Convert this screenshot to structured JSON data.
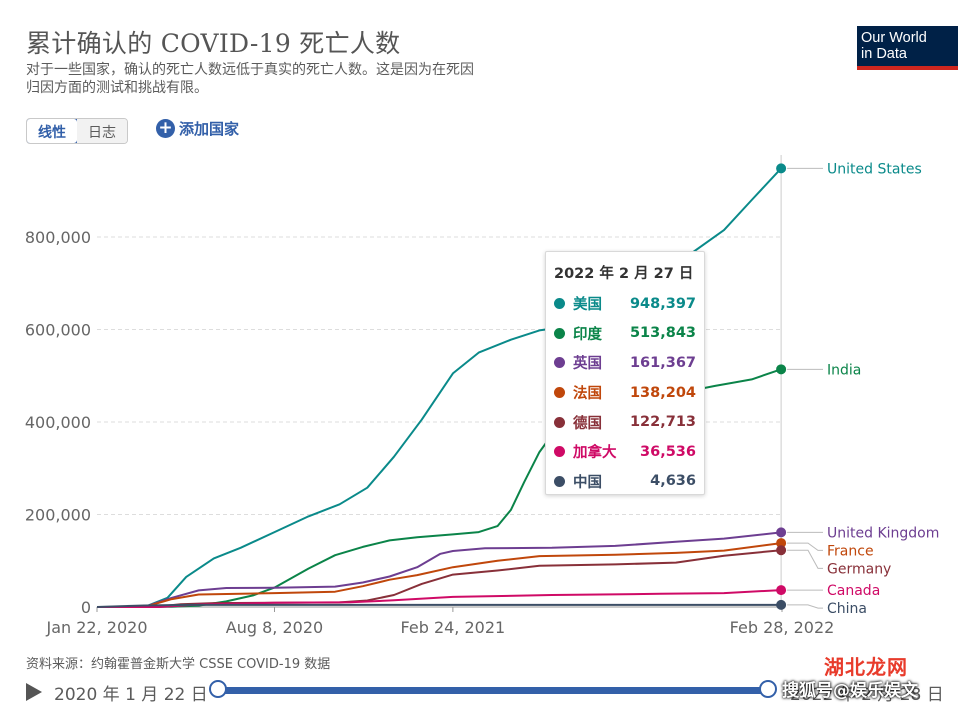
{
  "header": {
    "title": "累计确认的 COVID-19 死亡人数",
    "subtitle": "对于一些国家，确认的死亡人数远低于真实的死亡人数。这是因为在死因归因方面的测试和挑战有限。",
    "logo_line1": "Our World",
    "logo_line2": "in Data"
  },
  "controls": {
    "scale_linear": "线性",
    "scale_log": "日志",
    "add_country": "添加国家"
  },
  "tooltip": {
    "date": "2022 年 2 月 27 日",
    "rows": [
      {
        "name": "美国",
        "value": "948,397",
        "color": "#0a8a8a"
      },
      {
        "name": "印度",
        "value": "513,843",
        "color": "#0b8449"
      },
      {
        "name": "英国",
        "value": "161,367",
        "color": "#6d3e91"
      },
      {
        "name": "法国",
        "value": "138,204",
        "color": "#c0470b"
      },
      {
        "name": "德国",
        "value": "122,713",
        "color": "#883039"
      },
      {
        "name": "加拿大",
        "value": "36,536",
        "color": "#cf0a66"
      },
      {
        "name": "中国",
        "value": "4,636",
        "color": "#3c4e66"
      }
    ]
  },
  "footer": {
    "source": "资料来源：约翰霍普金斯大学 CSSE COVID-19 数据",
    "timeline_start": "2020 年 1 月 22 日",
    "timeline_end": "2022 年 2 月 28 日"
  },
  "watermark": {
    "line1": "湖北龙网",
    "line2": "搜狐号@娱乐娱文"
  },
  "chart_data": {
    "type": "line",
    "xlabel": "",
    "ylabel": "",
    "ylim": [
      0,
      1000000
    ],
    "x_range": [
      "2020-01-22",
      "2022-02-28"
    ],
    "y_ticks": [
      0,
      200000,
      400000,
      600000,
      800000
    ],
    "y_tick_labels": [
      "0",
      "200,000",
      "400,000",
      "600,000",
      "800,000"
    ],
    "x_ticks": [
      "2020-01-22",
      "2020-08-08",
      "2021-02-24",
      "2022-02-28"
    ],
    "x_tick_labels": [
      "Jan 22, 2020",
      "Aug 8, 2020",
      "Feb 24, 2021",
      "Feb 28, 2022"
    ],
    "grid": "horizontal",
    "legend": "right, labels at line ends",
    "series": [
      {
        "name": "United States",
        "color": "#0a8a8a",
        "points": [
          [
            "2020-01-22",
            0
          ],
          [
            "2020-03-15",
            100
          ],
          [
            "2020-04-10",
            20000
          ],
          [
            "2020-05-01",
            65000
          ],
          [
            "2020-06-01",
            105000
          ],
          [
            "2020-07-01",
            128000
          ],
          [
            "2020-08-08",
            162000
          ],
          [
            "2020-09-15",
            196000
          ],
          [
            "2020-10-20",
            222000
          ],
          [
            "2020-11-20",
            258000
          ],
          [
            "2020-12-20",
            325000
          ],
          [
            "2021-01-20",
            405000
          ],
          [
            "2021-02-24",
            505000
          ],
          [
            "2021-03-25",
            550000
          ],
          [
            "2021-04-30",
            578000
          ],
          [
            "2021-06-01",
            598000
          ],
          [
            "2021-07-15",
            610000
          ],
          [
            "2021-08-25",
            638000
          ],
          [
            "2021-10-01",
            700000
          ],
          [
            "2021-11-15",
            760000
          ],
          [
            "2021-12-25",
            815000
          ],
          [
            "2022-01-25",
            880000
          ],
          [
            "2022-02-27",
            948397
          ]
        ]
      },
      {
        "name": "India",
        "color": "#0b8449",
        "points": [
          [
            "2020-01-22",
            0
          ],
          [
            "2020-04-15",
            400
          ],
          [
            "2020-05-15",
            3000
          ],
          [
            "2020-06-15",
            12000
          ],
          [
            "2020-07-15",
            25000
          ],
          [
            "2020-08-08",
            42000
          ],
          [
            "2020-09-15",
            83000
          ],
          [
            "2020-10-15",
            112000
          ],
          [
            "2020-11-15",
            130000
          ],
          [
            "2020-12-15",
            144000
          ],
          [
            "2021-01-15",
            151000
          ],
          [
            "2021-02-24",
            157000
          ],
          [
            "2021-03-25",
            162000
          ],
          [
            "2021-04-15",
            175000
          ],
          [
            "2021-04-30",
            210000
          ],
          [
            "2021-05-15",
            270000
          ],
          [
            "2021-06-01",
            335000
          ],
          [
            "2021-06-20",
            385000
          ],
          [
            "2021-07-15",
            415000
          ],
          [
            "2021-08-25",
            440000
          ],
          [
            "2021-10-15",
            455000
          ],
          [
            "2021-12-15",
            478000
          ],
          [
            "2022-01-25",
            492000
          ],
          [
            "2022-02-27",
            513843
          ]
        ]
      },
      {
        "name": "United Kingdom",
        "color": "#6d3e91",
        "points": [
          [
            "2020-01-22",
            0
          ],
          [
            "2020-03-15",
            100
          ],
          [
            "2020-04-15",
            20000
          ],
          [
            "2020-05-15",
            36000
          ],
          [
            "2020-06-15",
            41000
          ],
          [
            "2020-08-08",
            41500
          ],
          [
            "2020-10-15",
            44000
          ],
          [
            "2020-11-15",
            53000
          ],
          [
            "2020-12-15",
            66000
          ],
          [
            "2021-01-15",
            86000
          ],
          [
            "2021-02-10",
            115000
          ],
          [
            "2021-02-24",
            121000
          ],
          [
            "2021-04-01",
            127000
          ],
          [
            "2021-06-15",
            128000
          ],
          [
            "2021-08-25",
            132000
          ],
          [
            "2021-11-01",
            141000
          ],
          [
            "2021-12-25",
            148000
          ],
          [
            "2022-02-27",
            161367
          ]
        ]
      },
      {
        "name": "France",
        "color": "#c0470b",
        "points": [
          [
            "2020-01-22",
            0
          ],
          [
            "2020-03-15",
            100
          ],
          [
            "2020-04-15",
            17000
          ],
          [
            "2020-05-15",
            27000
          ],
          [
            "2020-08-08",
            30000
          ],
          [
            "2020-10-15",
            33000
          ],
          [
            "2020-11-15",
            45000
          ],
          [
            "2020-12-15",
            59000
          ],
          [
            "2021-01-15",
            69000
          ],
          [
            "2021-02-24",
            86000
          ],
          [
            "2021-04-15",
            100000
          ],
          [
            "2021-06-01",
            110000
          ],
          [
            "2021-08-25",
            113000
          ],
          [
            "2021-11-01",
            117000
          ],
          [
            "2021-12-25",
            122000
          ],
          [
            "2022-02-27",
            138204
          ]
        ]
      },
      {
        "name": "Germany",
        "color": "#883039",
        "points": [
          [
            "2020-01-22",
            0
          ],
          [
            "2020-03-25",
            100
          ],
          [
            "2020-04-25",
            6000
          ],
          [
            "2020-06-01",
            8500
          ],
          [
            "2020-08-08",
            9200
          ],
          [
            "2020-10-20",
            10000
          ],
          [
            "2020-11-20",
            14000
          ],
          [
            "2020-12-20",
            26000
          ],
          [
            "2021-01-20",
            50000
          ],
          [
            "2021-02-24",
            70000
          ],
          [
            "2021-04-15",
            79000
          ],
          [
            "2021-06-01",
            89000
          ],
          [
            "2021-08-25",
            92000
          ],
          [
            "2021-11-01",
            96000
          ],
          [
            "2021-12-25",
            111000
          ],
          [
            "2022-02-27",
            122713
          ]
        ]
      },
      {
        "name": "Canada",
        "color": "#cf0a66",
        "points": [
          [
            "2020-01-22",
            0
          ],
          [
            "2020-04-01",
            100
          ],
          [
            "2020-05-15",
            5500
          ],
          [
            "2020-08-08",
            9000
          ],
          [
            "2020-11-01",
            10200
          ],
          [
            "2020-12-20",
            14500
          ],
          [
            "2021-02-24",
            21800
          ],
          [
            "2021-06-15",
            26000
          ],
          [
            "2021-10-15",
            28500
          ],
          [
            "2021-12-25",
            30000
          ],
          [
            "2022-02-27",
            36536
          ]
        ]
      },
      {
        "name": "China",
        "color": "#3c4e66",
        "points": [
          [
            "2020-01-22",
            17
          ],
          [
            "2020-03-15",
            3200
          ],
          [
            "2020-05-01",
            4630
          ],
          [
            "2022-02-27",
            4636
          ]
        ]
      }
    ],
    "series_labels": [
      "United States",
      "India",
      "United Kingdom",
      "France",
      "Germany",
      "Canada",
      "China"
    ],
    "tooltip_date": "2022-02-27"
  }
}
